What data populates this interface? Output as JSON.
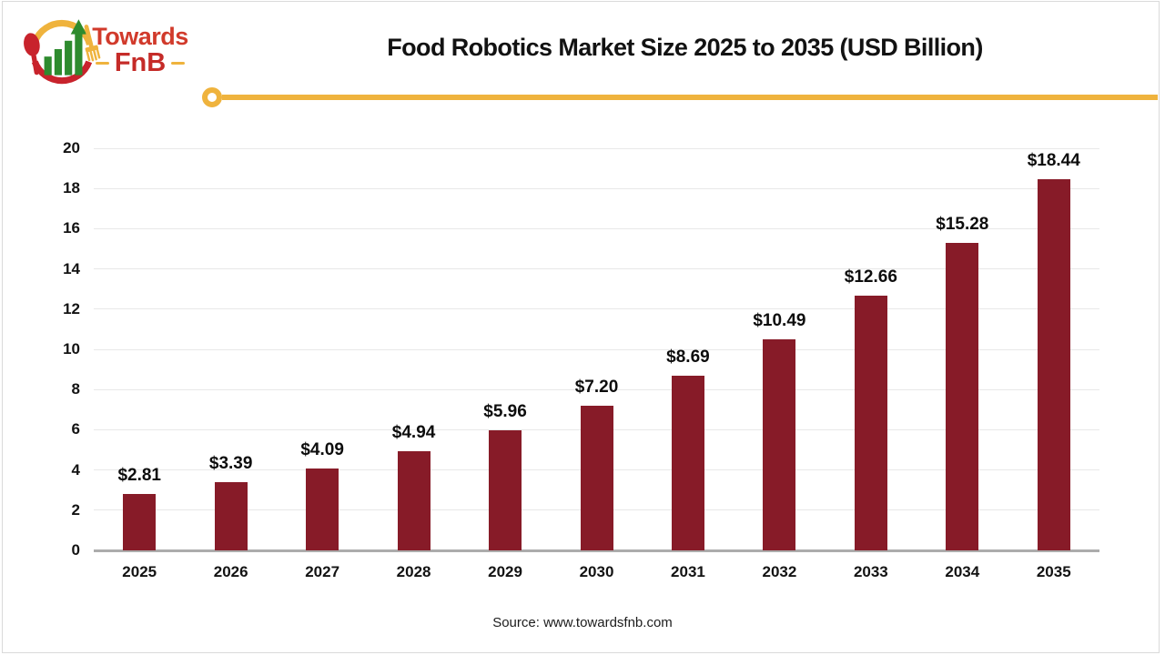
{
  "brand": {
    "text_top": "Towards",
    "text_bottom": "FnB",
    "colors": {
      "red": "#d13a2b",
      "dark_red": "#c52b28",
      "gold": "#efb33d",
      "green": "#2e8b2e"
    }
  },
  "header": {
    "title": "Food Robotics Market Size 2025 to 2035 (USD Billion)"
  },
  "chart_data": {
    "type": "bar",
    "title": "Food Robotics Market Size 2025 to 2035 (USD Billion)",
    "categories": [
      "2025",
      "2026",
      "2027",
      "2028",
      "2029",
      "2030",
      "2031",
      "2032",
      "2033",
      "2034",
      "2035"
    ],
    "values": [
      2.81,
      3.39,
      4.09,
      4.94,
      5.96,
      7.2,
      8.69,
      10.49,
      12.66,
      15.28,
      18.44
    ],
    "value_labels": [
      "$2.81",
      "$3.39",
      "$4.09",
      "$4.94",
      "$5.96",
      "$7.20",
      "$8.69",
      "$10.49",
      "$12.66",
      "$15.28",
      "$18.44"
    ],
    "xlabel": "",
    "ylabel": "",
    "ylim": [
      0,
      20
    ],
    "yticks": [
      0,
      2,
      4,
      6,
      8,
      10,
      12,
      14,
      16,
      18,
      20
    ],
    "grid": true,
    "legend": "none",
    "bar_color": "#871b28",
    "gridline_color": "#e8e8e8",
    "axis_line_color": "#acacac"
  },
  "footer": {
    "source": "Source: www.towardsfnb.com"
  }
}
